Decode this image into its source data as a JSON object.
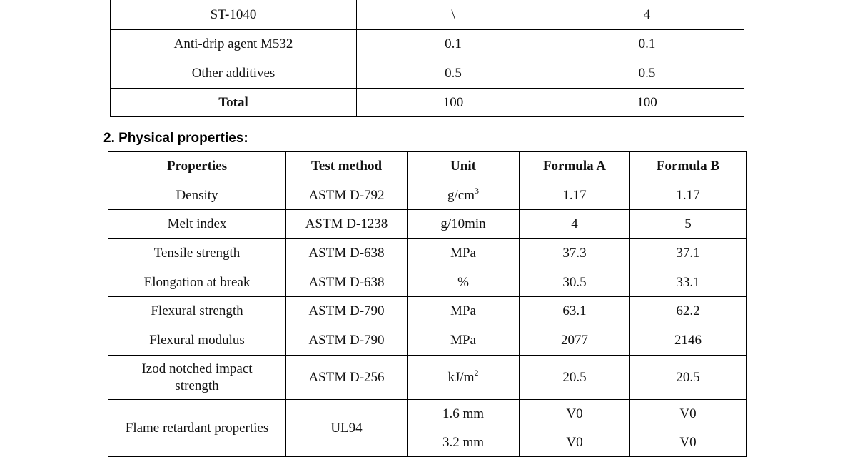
{
  "table1": {
    "rows": [
      [
        "ST-1040",
        "\\",
        "4"
      ],
      [
        "Anti-drip agent M532",
        "0.1",
        "0.1"
      ],
      [
        "Other additives",
        "0.5",
        "0.5"
      ],
      [
        "Total",
        "100",
        "100"
      ]
    ]
  },
  "section": {
    "title": "2. Physical properties:"
  },
  "table2": {
    "header": [
      "Properties",
      "Test method",
      "Unit",
      "Formula A",
      "Formula B"
    ],
    "rows": [
      [
        "Density",
        "ASTM D-792",
        {
          "base": "g/cm",
          "sup": "3"
        },
        "1.17",
        "1.17"
      ],
      [
        "Melt index",
        "ASTM D-1238",
        "g/10min",
        "4",
        "5"
      ],
      [
        "Tensile strength",
        "ASTM D-638",
        "MPa",
        "37.3",
        "37.1"
      ],
      [
        "Elongation at break",
        "ASTM D-638",
        "%",
        "30.5",
        "33.1"
      ],
      [
        "Flexural strength",
        "ASTM D-790",
        "MPa",
        "63.1",
        "62.2"
      ],
      [
        "Flexural modulus",
        "ASTM D-790",
        "MPa",
        "2077",
        "2146"
      ],
      [
        "Izod notched impact strength",
        "ASTM D-256",
        {
          "base": "kJ/m",
          "sup": "2"
        },
        "20.5",
        "20.5"
      ],
      [
        "Flame retardant properties",
        "UL94",
        "1.6 mm",
        "V0",
        "V0"
      ],
      [
        "3.2 mm",
        "V0",
        "V0"
      ]
    ]
  }
}
